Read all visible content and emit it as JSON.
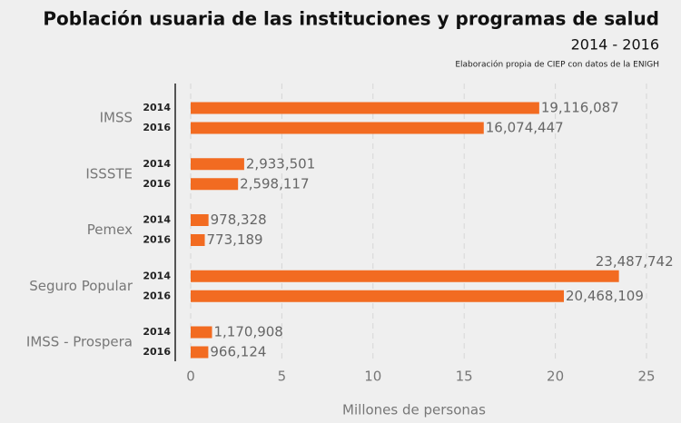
{
  "chart_data": {
    "type": "bar",
    "orientation": "horizontal",
    "title": "Población usuaria de las instituciones y programas de salud",
    "subtitle": "2014 - 2016",
    "note": "Elaboración propia de CIEP con datos de la ENIGH",
    "xlabel": "Millones de personas",
    "categories": [
      "IMSS",
      "ISSSTE",
      "Pemex",
      "Seguro Popular",
      "IMSS - Prospera"
    ],
    "series": [
      {
        "name": "2014",
        "color": "#f26b21",
        "values": [
          19.116087,
          2.933501,
          0.978328,
          23.487742,
          1.170908
        ],
        "value_labels": [
          "19,116,087",
          "2,933,501",
          "978,328",
          "23,487,742",
          "1,170,908"
        ]
      },
      {
        "name": "2016",
        "color": "#f26b21",
        "values": [
          16.074447,
          2.598117,
          0.773189,
          20.468109,
          0.966124
        ],
        "value_labels": [
          "16,074,447",
          "2,598,117",
          "773,189",
          "20,468,109",
          "966,124"
        ]
      }
    ],
    "xlim": [
      0,
      25
    ],
    "xticks": [
      0,
      5,
      10,
      15,
      20,
      25
    ],
    "grid": true
  }
}
